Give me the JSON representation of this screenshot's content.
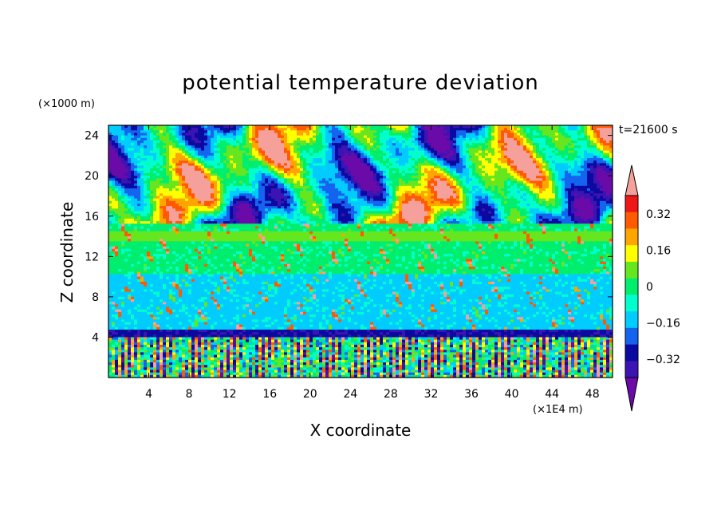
{
  "chart_data": {
    "type": "heatmap",
    "title": "potential temperature deviation",
    "xlabel": "X coordinate",
    "ylabel": "Z coordinate",
    "x_unit": "(×1E4 m)",
    "y_unit": "(×1000 m)",
    "time_label": "t=21600 s",
    "xlim": [
      0,
      50
    ],
    "ylim": [
      0,
      25
    ],
    "x_ticks": [
      4,
      8,
      12,
      16,
      20,
      24,
      28,
      32,
      36,
      40,
      44,
      48
    ],
    "y_ticks": [
      4,
      8,
      12,
      16,
      20,
      24
    ],
    "colorbar": {
      "levels": [
        -0.4,
        -0.32,
        -0.24,
        -0.16,
        -0.08,
        0,
        0.08,
        0.16,
        0.24,
        0.32,
        0.4
      ],
      "tick_labels": [
        "0.32",
        "0.16",
        "0",
        "−0.16",
        "−0.32"
      ],
      "tick_values": [
        0.32,
        0.16,
        0,
        -0.16,
        -0.32
      ],
      "colors": [
        "#6a0aa8",
        "#3c14b4",
        "#0a0aa0",
        "#1464f0",
        "#00ccff",
        "#00ffcc",
        "#00ee6e",
        "#66e61e",
        "#ffff00",
        "#ffa500",
        "#ff5a00",
        "#ee1616",
        "#f5a09b"
      ],
      "extend": "both"
    },
    "layers": [
      {
        "z_range": [
          0,
          4.8
        ],
        "pattern": "fine vertical streaks, mixed colors"
      },
      {
        "z_range": [
          4.8,
          15.2
        ],
        "pattern": "mostly cyan below ~10, green above, scattered positive streaks"
      },
      {
        "z_range": [
          15.2,
          25
        ],
        "pattern": "large patches of strong positive (pink) and negative (purple)"
      }
    ]
  }
}
